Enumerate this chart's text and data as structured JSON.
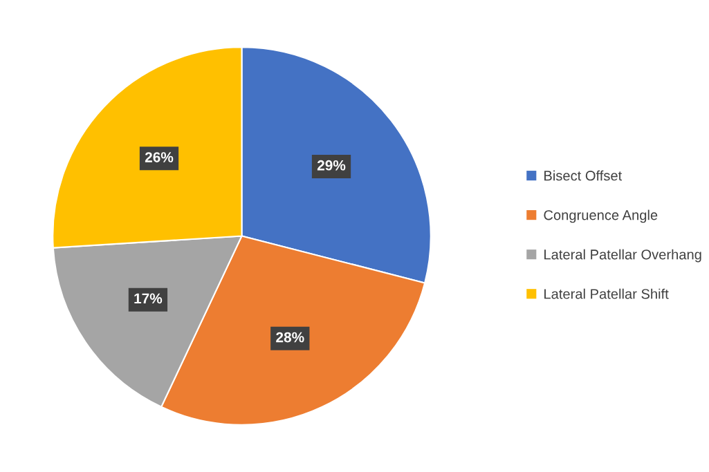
{
  "chart_data": {
    "type": "pie",
    "categories": [
      "Bisect Offset",
      "Congruence Angle",
      "Lateral Patellar Overhang",
      "Lateral Patellar Shift"
    ],
    "values": [
      29,
      28,
      17,
      26
    ],
    "colors": [
      "#4472c4",
      "#ed7d31",
      "#a5a5a5",
      "#ffc000"
    ],
    "value_labels": [
      "29%",
      "28%",
      "17%",
      "26%"
    ],
    "legend": "right"
  }
}
